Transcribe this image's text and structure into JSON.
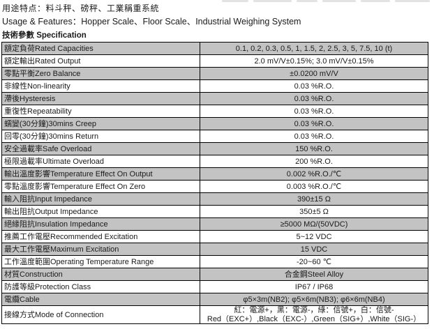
{
  "header": {
    "usage_zh": "用途特点：料斗秤、磅秤、工業稱重系統",
    "usage_en": "Usage & Features：Hopper Scale、Floor Scale、Industrial Weighing System",
    "spec_heading": "技術參數 Specification"
  },
  "colors": {
    "row_shade": "#c3c3c3",
    "border": "#000000",
    "background": "#ffffff"
  },
  "table": {
    "rows": [
      {
        "label": "額定負荷Rated Capacities",
        "value": "0.1, 0.2, 0.3, 0.5, 1, 1.5, 2, 2.5, 3, 5, 7.5, 10 (t)"
      },
      {
        "label": "額定輸出Rated Output",
        "value": "2.0 mV/V±0.15%;  3.0 mV/V±0.15%"
      },
      {
        "label": "零點平衡Zero Balance",
        "value": "±0.0200 mV/V"
      },
      {
        "label": "非線性Non-linearity",
        "value": "0.03 %R.O."
      },
      {
        "label": "滯後Hysteresis",
        "value": "0.03 %R.O."
      },
      {
        "label": "重復性Repeatability",
        "value": "0.03 %R.O."
      },
      {
        "label": "蠕變(30分鐘)30mins Creep",
        "value": "0.03 %R.O."
      },
      {
        "label": "回零(30分鐘)30mins Return",
        "value": "0.03 %R.O."
      },
      {
        "label": "安全過載率Safe Overload",
        "value": "150 %R.O."
      },
      {
        "label": "極限過載率Ultimate Overload",
        "value": "200 %R.O."
      },
      {
        "label": "輸出溫度影響Temperature Effect On Output",
        "value": "0.002 %R.O./℃"
      },
      {
        "label": "零點溫度影響Temperature Effect On Zero",
        "value": "0.003 %R.O./℃"
      },
      {
        "label": "輸入阻抗Input Impedance",
        "value": "390±15 Ω"
      },
      {
        "label": "輸出阻抗Output Impedance",
        "value": "350±5 Ω"
      },
      {
        "label": "絕緣阻抗Insulation Impedance",
        "value": "≥5000 MΩ/(50VDC)"
      },
      {
        "label": "推薦工作電壓Recommended Excitation",
        "value": "5~12 VDC"
      },
      {
        "label": "最大工作電壓Maximum Excitation",
        "value": "15 VDC"
      },
      {
        "label": "工作溫度範圍Operating Temperature Range",
        "value": "-20~60 ℃"
      },
      {
        "label": "材質Construction",
        "value": "合金鋼Steel Alloy"
      },
      {
        "label": "防護等級Protection Class",
        "value": "IP67 / IP68"
      },
      {
        "label": "電纜Cable",
        "value": "φ5×3m(NB2);  φ5×6m(NB3);  φ6×6m(NB4)"
      },
      {
        "label": "接線方式Mode of Connection",
        "value_lines": [
          "紅：電源+，黑：電源-，綠：信號+，白：信號-",
          "Red（EXC+）,Black（EXC-）,Green（SIG+）,White（SIG-）"
        ]
      }
    ]
  }
}
